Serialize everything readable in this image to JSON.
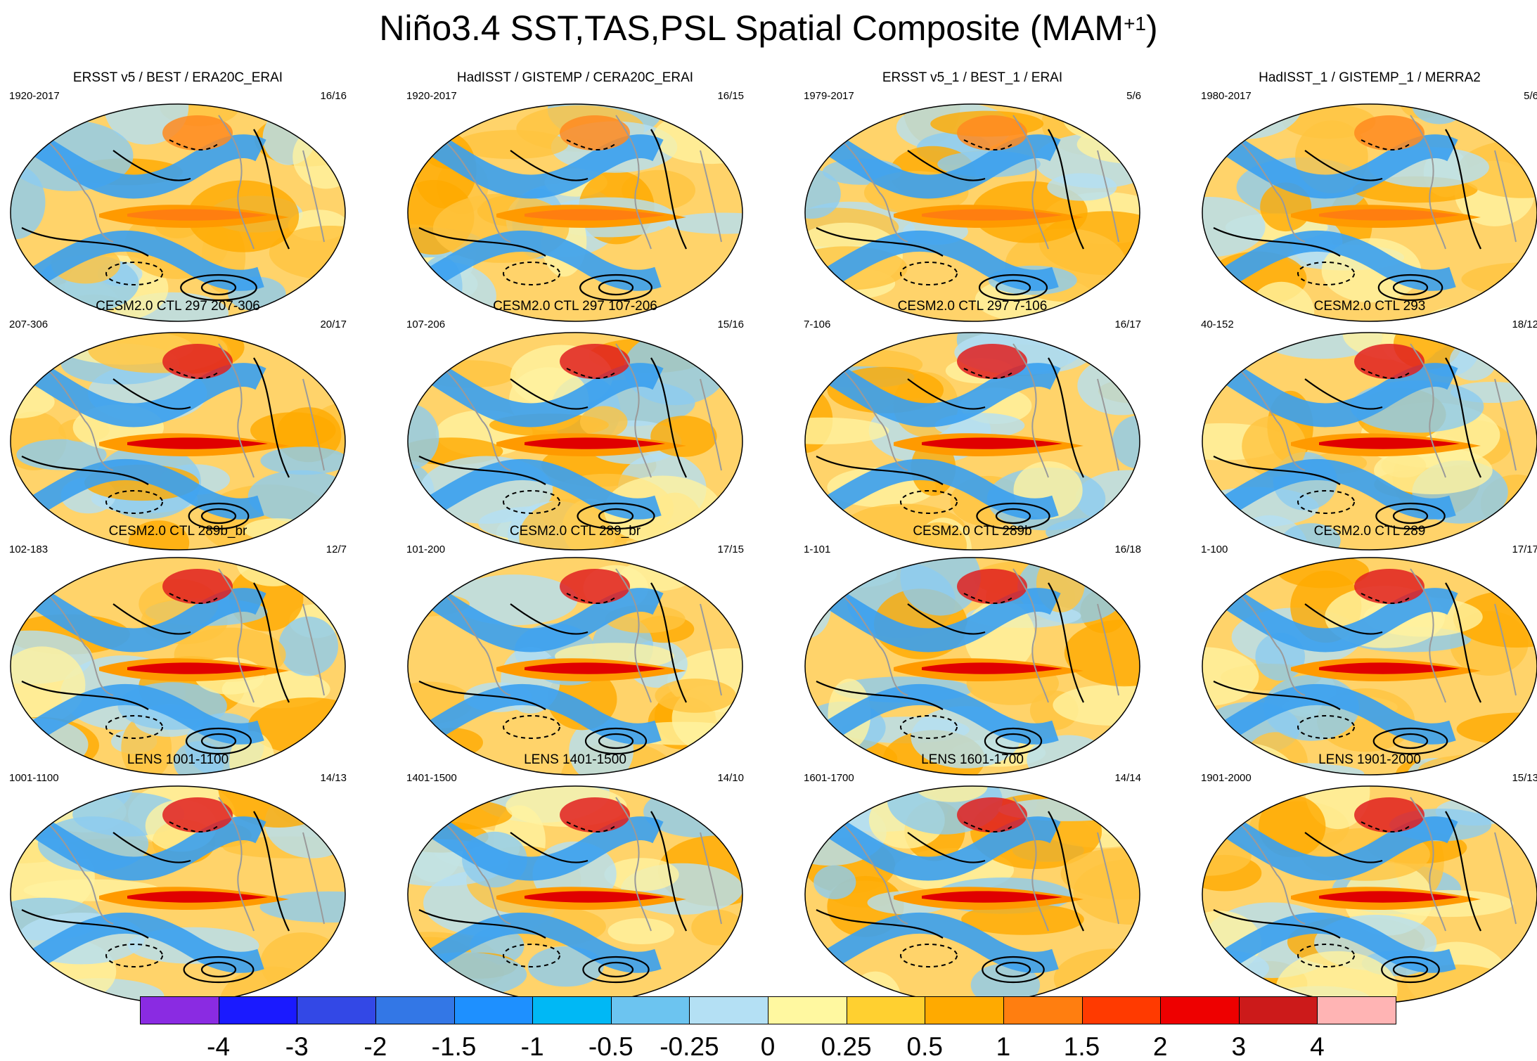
{
  "title": {
    "main": "Niño3.4 SST,TAS,PSL Spatial Composite (MAM",
    "superscript": "+1",
    "close": ")"
  },
  "panels": [
    {
      "title": "ERSST v5 / BEST / ERA20C_ERAI",
      "years": "1920-2017",
      "count": "16/16"
    },
    {
      "title": "HadISST / GISTEMP / CERA20C_ERAI",
      "years": "1920-2017",
      "count": "16/15"
    },
    {
      "title": "ERSST v5_1 / BEST_1 / ERAI",
      "years": "1979-2017",
      "count": "5/6"
    },
    {
      "title": "HadISST_1 / GISTEMP_1 / MERRA2",
      "years": "1980-2017",
      "count": "5/6"
    },
    {
      "title": "CESM2.0 CTL 297 207-306",
      "years": "207-306",
      "count": "20/17"
    },
    {
      "title": "CESM2.0 CTL 297 107-206",
      "years": "107-206",
      "count": "15/16"
    },
    {
      "title": "CESM2.0 CTL 297 7-106",
      "years": "7-106",
      "count": "16/17"
    },
    {
      "title": "CESM2.0 CTL 293",
      "years": "40-152",
      "count": "18/12"
    },
    {
      "title": "CESM2.0 CTL 289b_br",
      "years": "102-183",
      "count": "12/7"
    },
    {
      "title": "CESM2.0 CTL 289_br",
      "years": "101-200",
      "count": "17/15"
    },
    {
      "title": "CESM2.0 CTL 289b",
      "years": "1-101",
      "count": "16/18"
    },
    {
      "title": "CESM2.0 CTL 289",
      "years": "1-100",
      "count": "17/17"
    },
    {
      "title": "LENS 1001-1100",
      "years": "1001-1100",
      "count": "14/13"
    },
    {
      "title": "LENS 1401-1500",
      "years": "1401-1500",
      "count": "14/10"
    },
    {
      "title": "LENS 1601-1700",
      "years": "1601-1700",
      "count": "14/14"
    },
    {
      "title": "LENS 1901-2000",
      "years": "1901-2000",
      "count": "15/13"
    }
  ],
  "colorbar": {
    "colors": [
      "#8a2be2",
      "#1a1aff",
      "#3348e6",
      "#3377e6",
      "#1e90ff",
      "#00b8f5",
      "#6cc4f0",
      "#b4e0f4",
      "#fff8a0",
      "#ffd030",
      "#ffaa00",
      "#ff7e10",
      "#ff3a00",
      "#ee0000",
      "#cc1a1a",
      "#ffb4b4"
    ],
    "labels": [
      "-4",
      "-3",
      "-2",
      "-1.5",
      "-1",
      "-0.5",
      "-0.25",
      "0",
      "0.25",
      "0.5",
      "1",
      "1.5",
      "2",
      "3",
      "4"
    ]
  }
}
